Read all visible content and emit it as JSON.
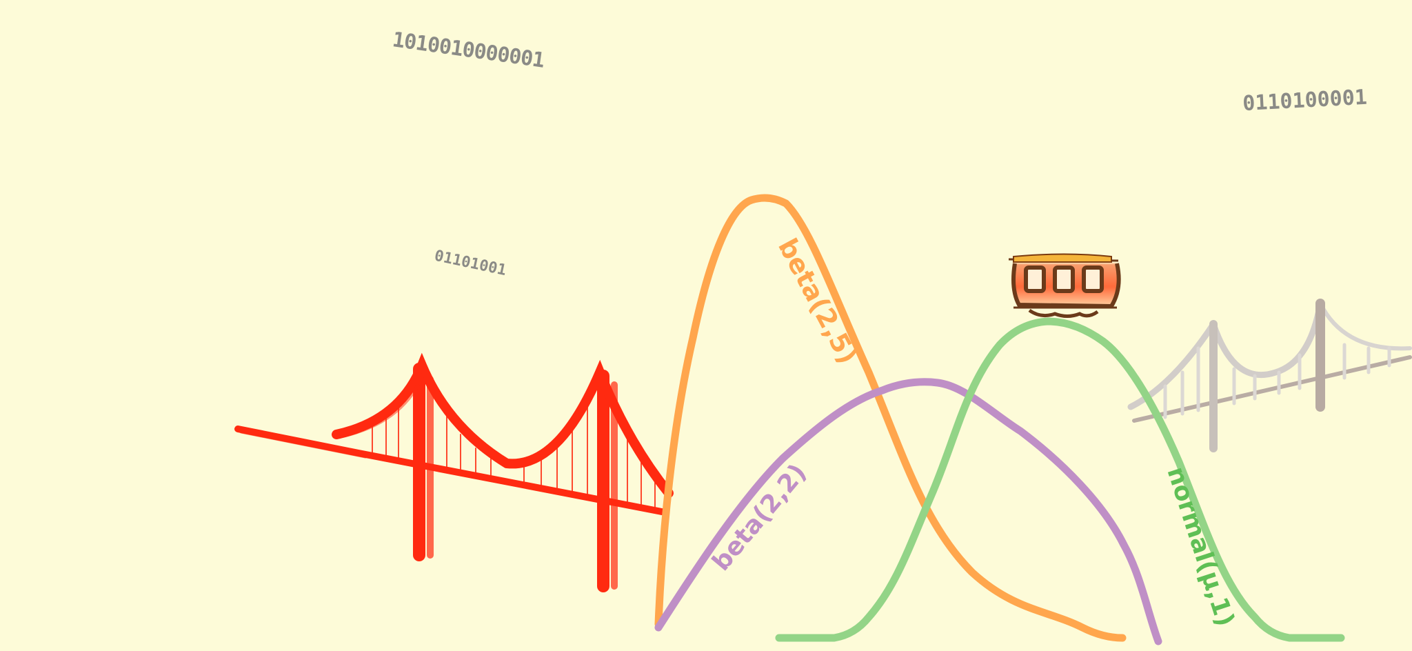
{
  "binary_doodles": [
    {
      "text": "1010010000001"
    },
    {
      "text": "01101001"
    },
    {
      "text": "0110100001"
    }
  ],
  "curve_labels": {
    "beta25": "beta(2,5)",
    "beta22": "beta(2,2)",
    "normal": "normal(μ,1)"
  },
  "colors": {
    "background": "#fdfbd8",
    "golden_gate": "#ff2a10",
    "bay_bridge": "#c9c4bf",
    "beta25_curve": "#ffa64d",
    "beta22_curve": "#bf8fc6",
    "normal_curve": "#93d487",
    "cable_car_body": "#c0502a",
    "binary_text": "#8a8a86"
  }
}
